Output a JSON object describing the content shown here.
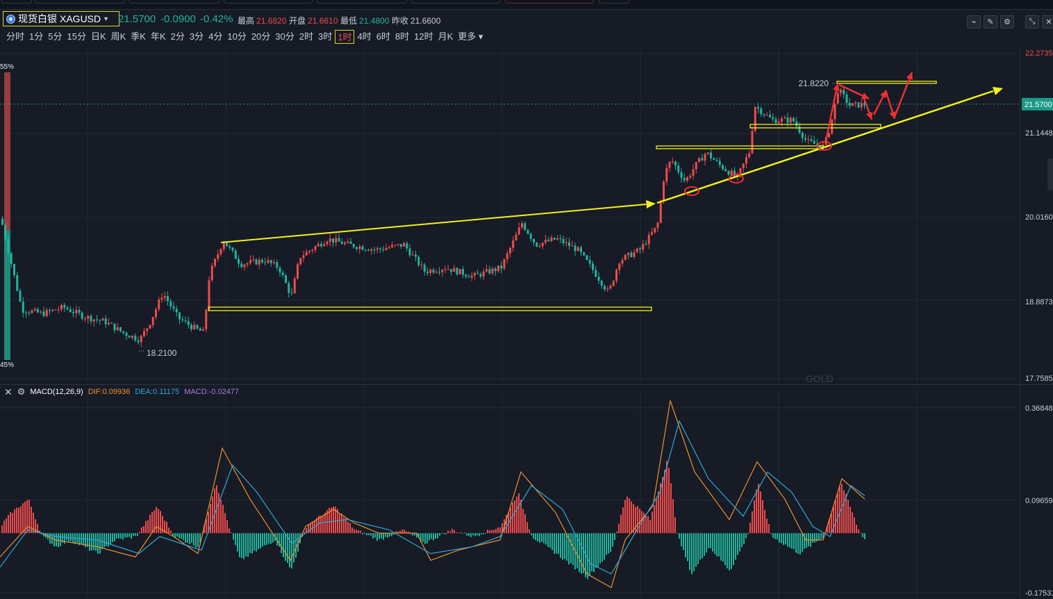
{
  "header": {
    "symbol_name": "现货白银",
    "symbol_code": "XAGUSD",
    "last_price": "21.5700",
    "change": "-0.0900",
    "change_pct": "-0.42%",
    "high_label": "最高",
    "high_value": "21.6820",
    "open_label": "开盘",
    "open_value": "21.6610",
    "low_label": "最低",
    "low_value": "21.4800",
    "prev_close_label": "昨收",
    "prev_close_value": "21.6600"
  },
  "toolbar": {
    "icons": [
      "line-chart-icon",
      "pencil-icon",
      "settings-icon",
      "collapse-icon",
      "close-icon"
    ]
  },
  "timeframes": [
    "分时",
    "1分",
    "5分",
    "15分",
    "日K",
    "周K",
    "季K",
    "年K",
    "2分",
    "3分",
    "4分",
    "10分",
    "20分",
    "30分",
    "2时",
    "3时",
    "1时",
    "4时",
    "6时",
    "8时",
    "12时",
    "月K",
    "更多"
  ],
  "active_timeframe": "1时",
  "colors": {
    "up": "#ef4c4c",
    "down": "#22b39c",
    "annotation_yellow": "#f2f21b",
    "annotation_red": "#ef3030",
    "dif_line": "#f0922c",
    "dea_line": "#31a8d9",
    "background": "#161b26"
  },
  "price_axis": {
    "ticks": [
      "22.2735",
      "21.1448",
      "20.0160",
      "18.8873",
      "17.7585"
    ],
    "current_price_tag": "21.5700"
  },
  "macd_axis": {
    "ticks": [
      "0.36848",
      "0.09659",
      "-0.17531"
    ]
  },
  "chart_data": {
    "type": "candlestick",
    "y_range": [
      17.7585,
      22.2735
    ],
    "high_marker": "21.8220",
    "low_marker": "18.2100",
    "left_scale_top": "55%",
    "left_scale_bottom": "45%",
    "watermark": "GOLD"
  },
  "macd": {
    "title": "MACD(12,26,9)",
    "dif": "DIF:0.09936",
    "dea": "DEA:0.11175",
    "macd": "MACD:-0.02477"
  }
}
